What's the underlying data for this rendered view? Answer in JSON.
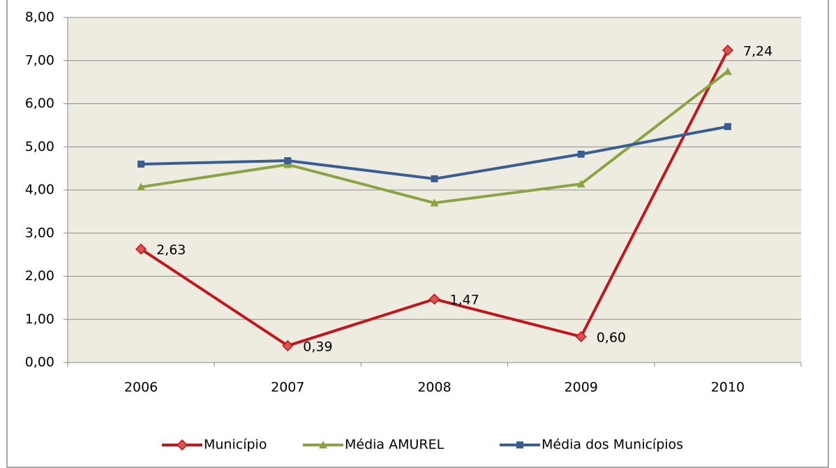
{
  "chart_data": {
    "type": "line",
    "categories": [
      "2006",
      "2007",
      "2008",
      "2009",
      "2010"
    ],
    "series": [
      {
        "name": "Município",
        "color": "#C0161C",
        "marker": "diamond",
        "values": [
          2.63,
          0.39,
          1.47,
          0.6,
          7.24
        ],
        "value_labels": [
          "2,63",
          "0,39",
          "1,47",
          "0,60",
          "7,24"
        ]
      },
      {
        "name": "Média AMUREL",
        "color": "#8AA444",
        "marker": "triangle",
        "values": [
          4.07,
          4.59,
          3.7,
          4.14,
          6.75
        ]
      },
      {
        "name": "Média dos Municípios",
        "color": "#3A5E94",
        "marker": "square",
        "values": [
          4.6,
          4.68,
          4.26,
          4.83,
          5.47
        ]
      }
    ],
    "ylim": [
      0,
      8
    ],
    "yticks": [
      {
        "value": 0,
        "label": "0,00"
      },
      {
        "value": 1,
        "label": "1,00"
      },
      {
        "value": 2,
        "label": "2,00"
      },
      {
        "value": 3,
        "label": "3,00"
      },
      {
        "value": 4,
        "label": "4,00"
      },
      {
        "value": 5,
        "label": "5,00"
      },
      {
        "value": 6,
        "label": "6,00"
      },
      {
        "value": 7,
        "label": "7,00"
      },
      {
        "value": 8,
        "label": "8,00"
      }
    ],
    "grid": true,
    "legend": "bottom"
  }
}
